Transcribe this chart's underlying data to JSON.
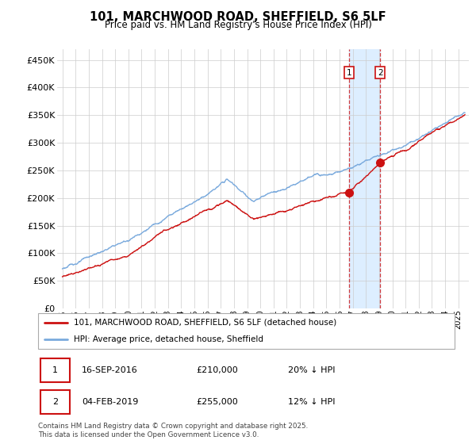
{
  "title": "101, MARCHWOOD ROAD, SHEFFIELD, S6 5LF",
  "subtitle": "Price paid vs. HM Land Registry's House Price Index (HPI)",
  "ylabel_ticks": [
    "£0",
    "£50K",
    "£100K",
    "£150K",
    "£200K",
    "£250K",
    "£300K",
    "£350K",
    "£400K",
    "£450K"
  ],
  "ytick_values": [
    0,
    50000,
    100000,
    150000,
    200000,
    250000,
    300000,
    350000,
    400000,
    450000
  ],
  "ylim": [
    0,
    470000
  ],
  "xlim_start": 1994.6,
  "xlim_end": 2025.8,
  "hpi_color": "#7aaadd",
  "price_color": "#cc1111",
  "sale1_date": 2016.71,
  "sale1_price": 210000,
  "sale2_date": 2019.09,
  "sale2_price": 255000,
  "legend_line1": "101, MARCHWOOD ROAD, SHEFFIELD, S6 5LF (detached house)",
  "legend_line2": "HPI: Average price, detached house, Sheffield",
  "table_row1": [
    "1",
    "16-SEP-2016",
    "£210,000",
    "20% ↓ HPI"
  ],
  "table_row2": [
    "2",
    "04-FEB-2019",
    "£255,000",
    "12% ↓ HPI"
  ],
  "footer": "Contains HM Land Registry data © Crown copyright and database right 2025.\nThis data is licensed under the Open Government Licence v3.0.",
  "grid_color": "#cccccc",
  "span_color": "#ddeeff"
}
